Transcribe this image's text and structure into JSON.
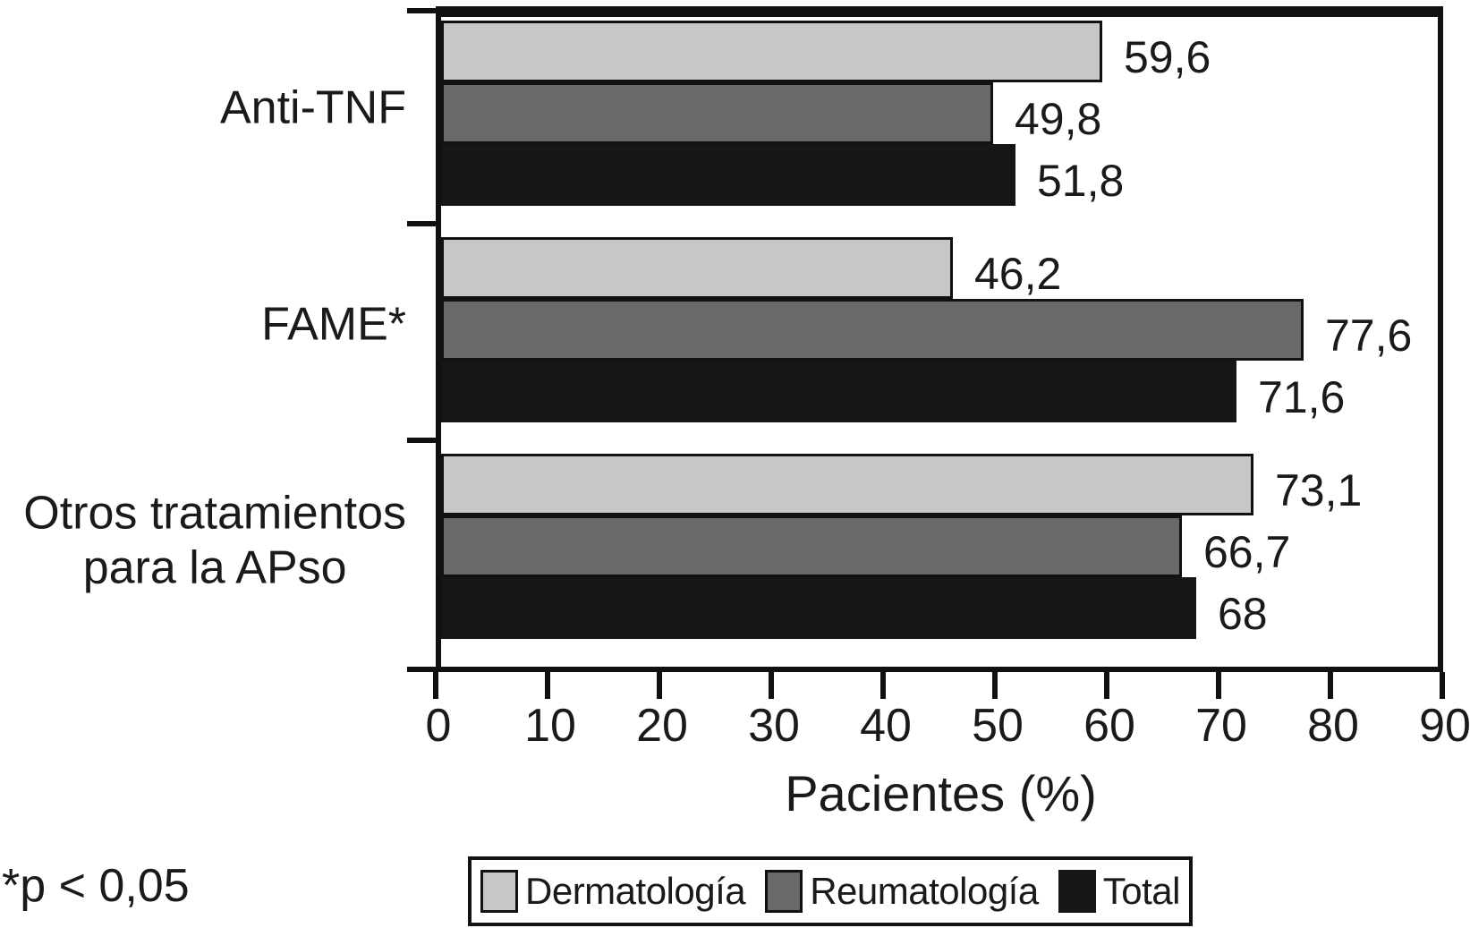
{
  "figure": {
    "footnote": "*p < 0,05"
  },
  "colors": {
    "axis_line": "#111111",
    "text": "#1a1a1a",
    "background": "#ffffff"
  },
  "chart_data": {
    "type": "bar",
    "orientation": "horizontal",
    "categories": [
      "Anti-TNF",
      "FAME*",
      "Otros tratamientos\npara la APso"
    ],
    "series": [
      {
        "name": "Dermatología",
        "color": "#c7c7c7",
        "values": [
          59.6,
          46.2,
          73.1
        ],
        "value_labels": [
          "59,6",
          "46,2",
          "73,1"
        ]
      },
      {
        "name": "Reumatología",
        "color": "#696969",
        "values": [
          49.8,
          77.6,
          66.7
        ],
        "value_labels": [
          "49,8",
          "77,6",
          "66,7"
        ]
      },
      {
        "name": "Total",
        "color": "#161616",
        "values": [
          51.8,
          71.6,
          68
        ],
        "value_labels": [
          "51,8",
          "71,6",
          "68"
        ]
      }
    ],
    "xlabel": "Pacientes (%)",
    "xlim": [
      0,
      90
    ],
    "xticks": [
      0,
      10,
      20,
      30,
      40,
      50,
      60,
      70,
      80,
      90
    ],
    "xtick_labels": [
      "0",
      "10",
      "20",
      "30",
      "40",
      "50",
      "60",
      "70",
      "80",
      "90"
    ],
    "grid": false,
    "legend": {
      "position": "bottom",
      "entries": [
        "Dermatología",
        "Reumatología",
        "Total"
      ]
    }
  }
}
